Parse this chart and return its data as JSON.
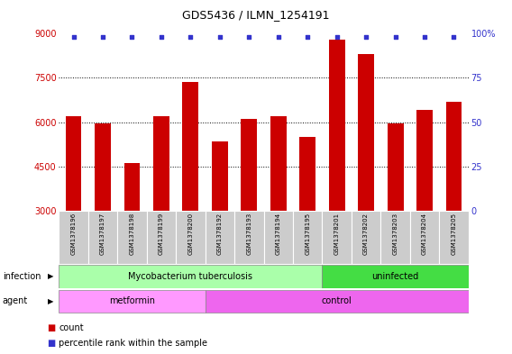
{
  "title": "GDS5436 / ILMN_1254191",
  "samples": [
    "GSM1378196",
    "GSM1378197",
    "GSM1378198",
    "GSM1378199",
    "GSM1378200",
    "GSM1378192",
    "GSM1378193",
    "GSM1378194",
    "GSM1378195",
    "GSM1378201",
    "GSM1378202",
    "GSM1378203",
    "GSM1378204",
    "GSM1378205"
  ],
  "counts": [
    6200,
    5950,
    4600,
    6200,
    7350,
    5350,
    6100,
    6200,
    5500,
    8800,
    8300,
    5950,
    6400,
    6700
  ],
  "percentile_values": [
    99,
    99,
    99,
    99,
    99,
    99,
    99,
    99,
    99,
    99,
    99,
    99,
    99,
    99
  ],
  "bar_color": "#cc0000",
  "dot_color": "#3333cc",
  "ylim_left": [
    3000,
    9000
  ],
  "ylim_right": [
    0,
    100
  ],
  "yticks_left": [
    3000,
    4500,
    6000,
    7500,
    9000
  ],
  "yticks_right": [
    0,
    25,
    50,
    75,
    100
  ],
  "grid_dotted_lines": [
    4500,
    6000,
    7500
  ],
  "background_color": "#ffffff",
  "infection_tb_label": "Mycobacterium tuberculosis",
  "infection_tb_count": 9,
  "infection_tb_color": "#aaffaa",
  "infection_uninf_label": "uninfected",
  "infection_uninf_count": 5,
  "infection_uninf_color": "#44dd44",
  "agent_met_label": "metformin",
  "agent_met_count": 5,
  "agent_met_color": "#ff99ff",
  "agent_ctrl_label": "control",
  "agent_ctrl_count": 9,
  "agent_ctrl_color": "#ee66ee",
  "legend_count_color": "#cc0000",
  "legend_dot_color": "#3333cc",
  "left_axis_color": "#cc0000",
  "right_axis_color": "#3333cc",
  "title_fontsize": 9,
  "axis_fontsize": 7,
  "label_fontsize": 7,
  "sample_fontsize": 5
}
